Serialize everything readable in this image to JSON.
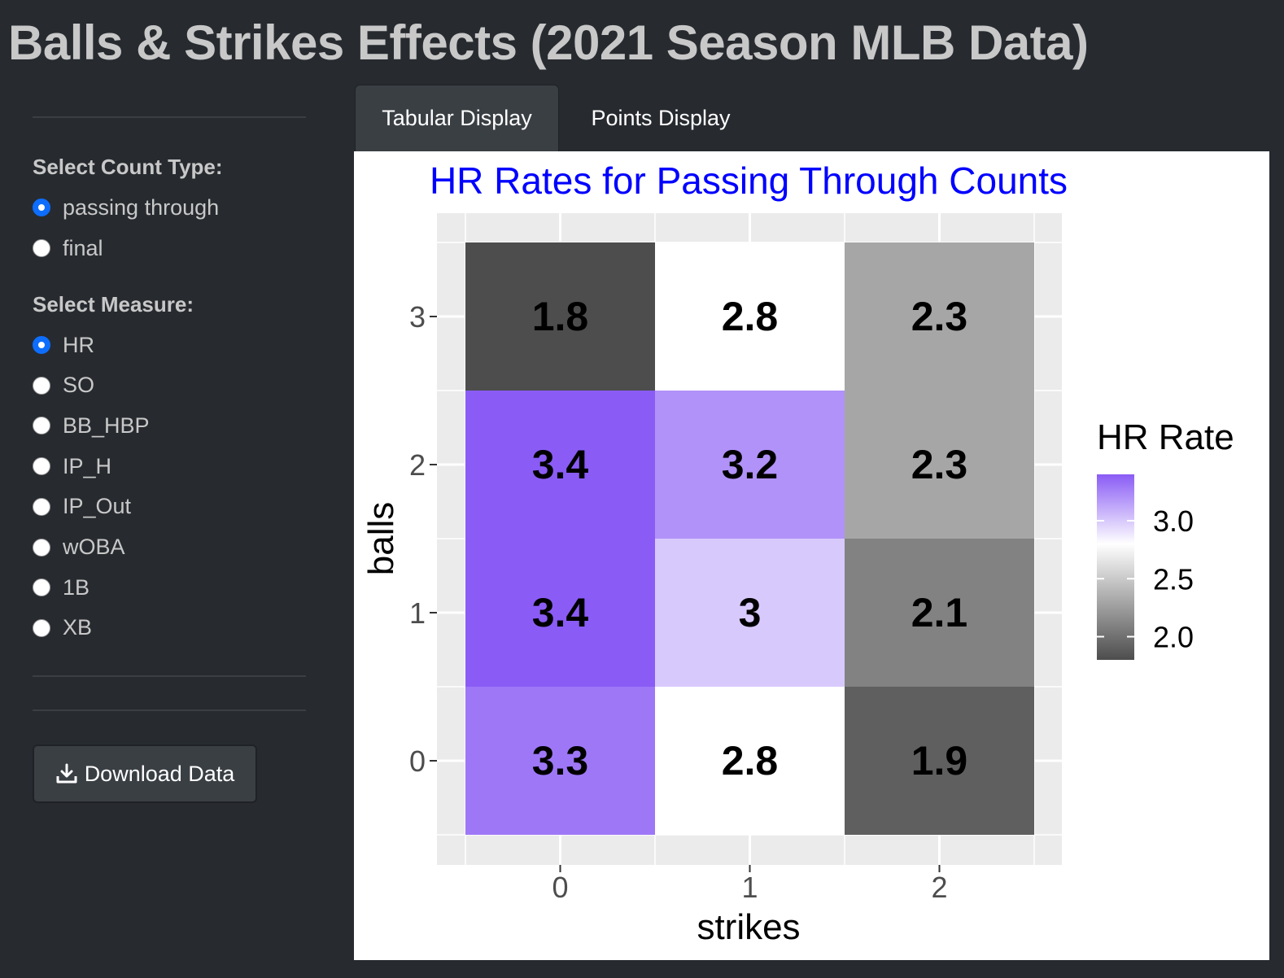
{
  "app": {
    "title": "Balls & Strikes Effects (2021 Season MLB Data)"
  },
  "sidebar": {
    "count_type": {
      "label": "Select Count Type:",
      "options": [
        "passing through",
        "final"
      ],
      "selected": "passing through"
    },
    "measure": {
      "label": "Select Measure:",
      "options": [
        "HR",
        "SO",
        "BB_HBP",
        "IP_H",
        "IP_Out",
        "wOBA",
        "1B",
        "XB"
      ],
      "selected": "HR"
    },
    "download_label": "Download Data"
  },
  "tabs": [
    {
      "label": "Tabular Display",
      "active": true
    },
    {
      "label": "Points Display",
      "active": false
    }
  ],
  "colors": {
    "title_blue": "#0000ff",
    "accent_radio": "#0d6efd",
    "high": "#8a5cf5",
    "mid": "#ffffff",
    "low": "#4d4d4d"
  },
  "chart_data": {
    "type": "heatmap",
    "title": "HR Rates for Passing Through Counts",
    "xlabel": "strikes",
    "ylabel": "balls",
    "x_categories": [
      "0",
      "1",
      "2"
    ],
    "y_categories": [
      "0",
      "1",
      "2",
      "3"
    ],
    "cells": [
      {
        "balls": 3,
        "strikes": 0,
        "value": 1.8,
        "label": "1.8"
      },
      {
        "balls": 3,
        "strikes": 1,
        "value": 2.8,
        "label": "2.8"
      },
      {
        "balls": 3,
        "strikes": 2,
        "value": 2.3,
        "label": "2.3"
      },
      {
        "balls": 2,
        "strikes": 0,
        "value": 3.4,
        "label": "3.4"
      },
      {
        "balls": 2,
        "strikes": 1,
        "value": 3.2,
        "label": "3.2"
      },
      {
        "balls": 2,
        "strikes": 2,
        "value": 2.3,
        "label": "2.3"
      },
      {
        "balls": 1,
        "strikes": 0,
        "value": 3.4,
        "label": "3.4"
      },
      {
        "balls": 1,
        "strikes": 1,
        "value": 3.0,
        "label": "3"
      },
      {
        "balls": 1,
        "strikes": 2,
        "value": 2.1,
        "label": "2.1"
      },
      {
        "balls": 0,
        "strikes": 0,
        "value": 3.3,
        "label": "3.3"
      },
      {
        "balls": 0,
        "strikes": 1,
        "value": 2.8,
        "label": "2.8"
      },
      {
        "balls": 0,
        "strikes": 2,
        "value": 1.9,
        "label": "1.9"
      }
    ],
    "legend": {
      "title": "HR Rate",
      "placement": "right",
      "ticks": [
        "3.0",
        "2.5",
        "2.0"
      ],
      "range": [
        1.8,
        3.4
      ],
      "midpoint": 2.8
    },
    "grid": true
  }
}
